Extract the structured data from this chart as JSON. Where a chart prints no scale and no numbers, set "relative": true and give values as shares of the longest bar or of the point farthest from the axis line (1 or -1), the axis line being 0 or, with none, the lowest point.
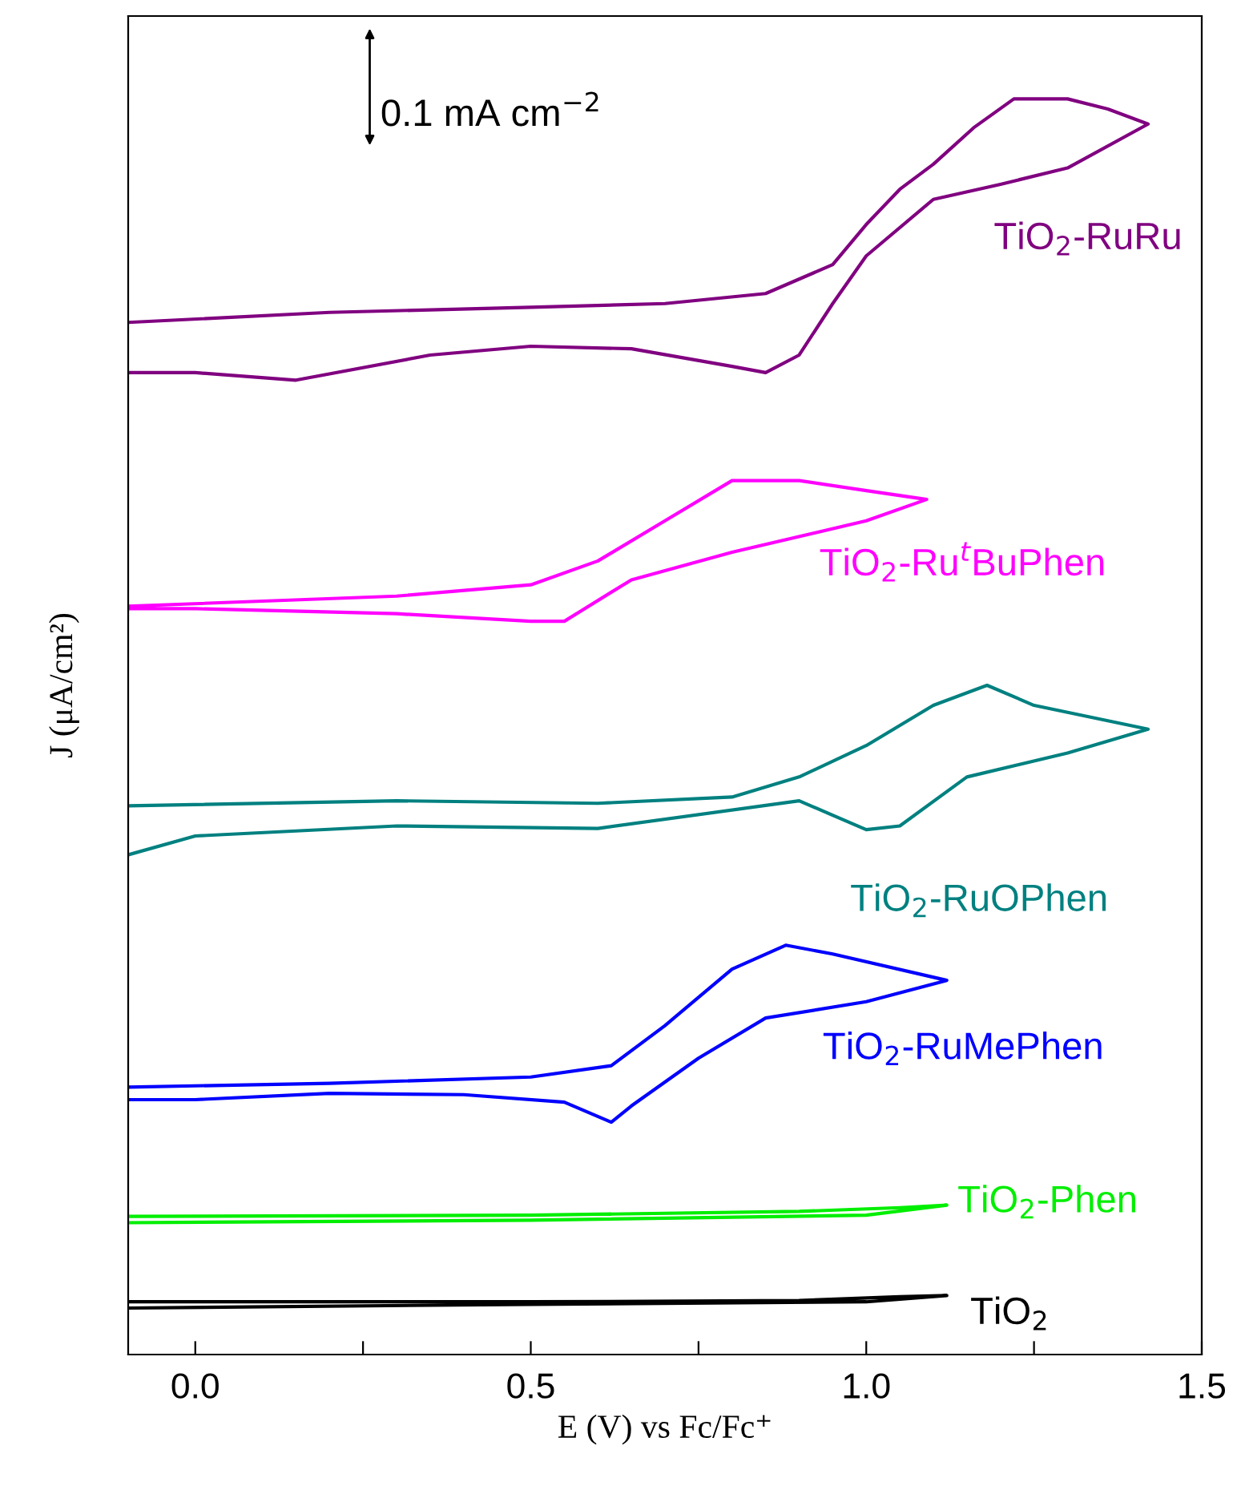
{
  "chart_data": {
    "type": "line",
    "relative": true,
    "xlabel": "E (V) vs Fc/Fc⁺",
    "ylabel": "J (μA/cm²)",
    "xlim": [
      -0.1,
      1.5
    ],
    "xticks": [
      {
        "value": 0,
        "label": "0.0"
      },
      {
        "value": 0.25,
        "label": null
      },
      {
        "value": 0.5,
        "label": "0.5"
      },
      {
        "value": 0.75,
        "label": null
      },
      {
        "value": 1,
        "label": "1.0"
      },
      {
        "value": 1.25,
        "label": null
      },
      {
        "value": 1.5,
        "label": "1.5"
      }
    ],
    "tick_labels": "x",
    "grid": false,
    "legend": false,
    "marker": "none",
    "line_style": "solid",
    "annotations": [
      "0.1 mA cm$^{−2}$"
    ],
    "series": [
      {
        "name": "TiO$_{2}$-RuRu",
        "color": "#800080",
        "x": [
          -0.1,
          0.2,
          0.5,
          0.7,
          0.85,
          0.95,
          1.0,
          1.05,
          1.1,
          1.16,
          1.22,
          1.3,
          1.36,
          1.42,
          1.3,
          1.2,
          1.1,
          1.0,
          0.95,
          0.9,
          0.85,
          0.8,
          0.65,
          0.5,
          0.35,
          0.15,
          0.0,
          -0.1
        ],
        "values": [
          0.822,
          0.83,
          0.834,
          0.837,
          0.845,
          0.868,
          0.9,
          0.928,
          0.948,
          0.977,
          1,
          1,
          0.992,
          0.98,
          0.945,
          0.932,
          0.92,
          0.875,
          0.837,
          0.796,
          0.782,
          0.787,
          0.801,
          0.803,
          0.796,
          0.776,
          0.782,
          0.782
        ]
      },
      {
        "name": "TiO$_{2}$-Ru$^{t}$BuPhen",
        "color": "#ff00ff",
        "x": [
          -0.1,
          0.3,
          0.5,
          0.6,
          0.7,
          0.8,
          0.9,
          1.0,
          1.09,
          1.0,
          0.8,
          0.65,
          0.55,
          0.5,
          0.3,
          0.0,
          -0.1
        ],
        "values": [
          0.596,
          0.604,
          0.613,
          0.632,
          0.664,
          0.696,
          0.696,
          0.688,
          0.681,
          0.664,
          0.639,
          0.617,
          0.584,
          0.584,
          0.59,
          0.594,
          0.594
        ]
      },
      {
        "name": "TiO$_{2}$-RuOPhen",
        "color": "#008080",
        "x": [
          -0.1,
          0.3,
          0.6,
          0.8,
          0.9,
          1.0,
          1.1,
          1.18,
          1.25,
          1.42,
          1.3,
          1.15,
          1.05,
          1.0,
          0.9,
          0.6,
          0.3,
          0.0,
          -0.1
        ],
        "values": [
          0.437,
          0.441,
          0.439,
          0.444,
          0.46,
          0.485,
          0.517,
          0.533,
          0.517,
          0.498,
          0.479,
          0.46,
          0.421,
          0.418,
          0.441,
          0.419,
          0.421,
          0.413,
          0.398
        ]
      },
      {
        "name": "TiO$_{2}$-RuMePhen",
        "color": "#0000ff",
        "x": [
          -0.1,
          0.2,
          0.5,
          0.62,
          0.7,
          0.8,
          0.88,
          0.95,
          1.12,
          1.0,
          0.85,
          0.75,
          0.65,
          0.62,
          0.55,
          0.4,
          0.2,
          0.0,
          -0.1
        ],
        "values": [
          0.213,
          0.216,
          0.221,
          0.23,
          0.262,
          0.307,
          0.326,
          0.319,
          0.298,
          0.281,
          0.268,
          0.236,
          0.198,
          0.185,
          0.201,
          0.207,
          0.208,
          0.203,
          0.203
        ]
      },
      {
        "name": "TiO$_{2}$-Phen",
        "color": "#00ee00",
        "x": [
          -0.1,
          0.5,
          0.9,
          1.05,
          1.12,
          1.0,
          0.5,
          -0.1
        ],
        "values": [
          0.11,
          0.111,
          0.114,
          0.117,
          0.119,
          0.111,
          0.107,
          0.105
        ]
      },
      {
        "name": "TiO$_{2}$",
        "color": "#000000",
        "x": [
          -0.1,
          0.5,
          0.9,
          1.05,
          1.12,
          1.0,
          0.5,
          -0.1
        ],
        "values": [
          0.042,
          0.042,
          0.043,
          0.046,
          0.047,
          0.042,
          0.04,
          0.037
        ]
      }
    ]
  }
}
